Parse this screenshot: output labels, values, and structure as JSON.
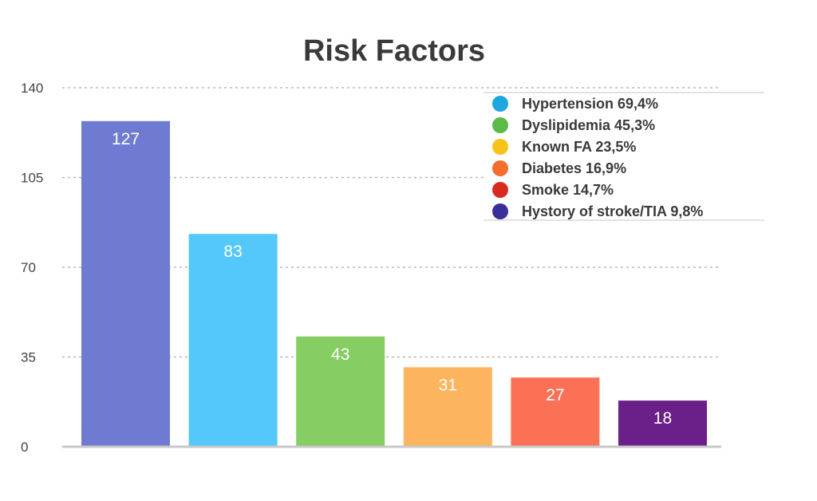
{
  "chart_data": {
    "type": "bar",
    "title": "Risk Factors",
    "xlabel": "",
    "ylabel": "",
    "ylim": [
      0,
      140
    ],
    "yticks": [
      0,
      35,
      70,
      105,
      140
    ],
    "grid": true,
    "legend_position": "top-right",
    "categories": [
      "",
      "",
      "",
      "",
      "",
      ""
    ],
    "values": [
      127,
      83,
      43,
      31,
      27,
      18
    ],
    "bar_colors": [
      "#6f7bd2",
      "#55c8fb",
      "#86cd64",
      "#fdb45e",
      "#fa7155",
      "#6b1f88"
    ],
    "legend": [
      {
        "label": "Hypertension 69,4%",
        "color": "#1da6e0"
      },
      {
        "label": "Dyslipidemia 45,3%",
        "color": "#5cba47"
      },
      {
        "label": "Known FA 23,5%",
        "color": "#f7c21a"
      },
      {
        "label": "Diabetes 16,9%",
        "color": "#f36d2e"
      },
      {
        "label": "Smoke 14,7%",
        "color": "#d92a20"
      },
      {
        "label": "Hystory of stroke/TIA 9,8%",
        "color": "#3a2f9a"
      }
    ]
  }
}
